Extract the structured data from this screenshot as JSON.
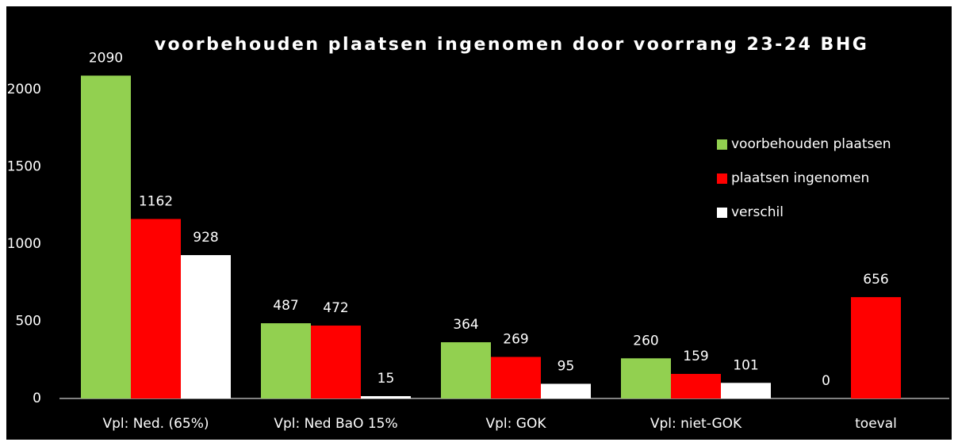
{
  "chart_data": {
    "type": "bar",
    "title": "voorbehouden plaatsen ingenomen door voorrang 23-24 BHG",
    "categories": [
      "Vpl: Ned. (65%)",
      "Vpl: Ned BaO 15%",
      "Vpl: GOK",
      "Vpl: niet-GOK",
      "toeval"
    ],
    "series": [
      {
        "name": "voorbehouden plaatsen",
        "color": "#92d050",
        "values": [
          2090,
          487,
          364,
          260,
          0
        ]
      },
      {
        "name": "plaatsen ingenomen",
        "color": "#ff0000",
        "values": [
          1162,
          472,
          269,
          159,
          656
        ]
      },
      {
        "name": "verschil",
        "color": "#ffffff",
        "values": [
          928,
          15,
          95,
          101,
          null
        ]
      }
    ],
    "ylim": [
      0,
      2500
    ],
    "yticks": [
      0,
      500,
      1000,
      1500,
      2000
    ],
    "grid": false,
    "legend": "right"
  }
}
